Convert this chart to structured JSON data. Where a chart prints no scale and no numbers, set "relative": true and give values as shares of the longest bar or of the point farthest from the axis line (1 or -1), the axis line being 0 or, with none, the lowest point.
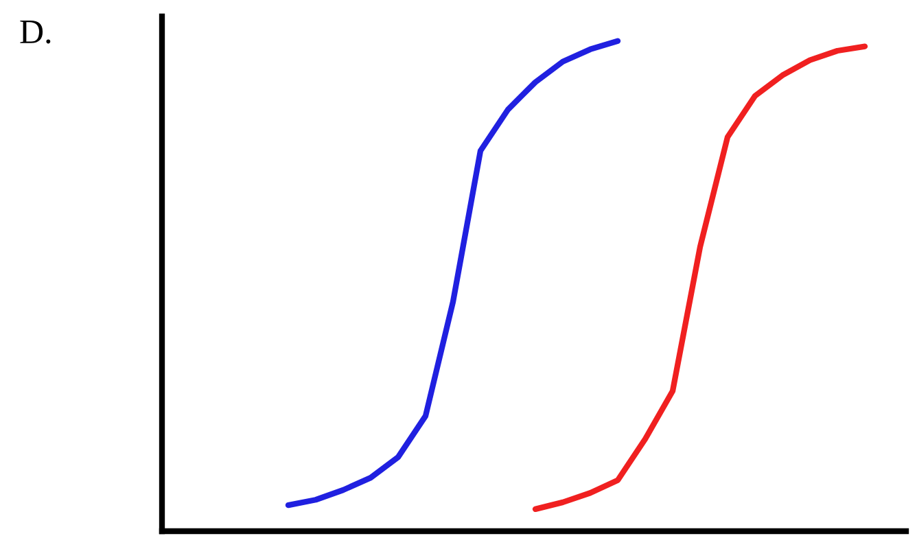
{
  "chart_data": {
    "type": "line",
    "relative": true,
    "annotations": [
      "D."
    ],
    "categories": [
      null,
      null,
      null,
      null,
      null,
      null,
      null,
      null,
      null,
      null,
      null,
      null,
      null,
      null,
      null,
      null,
      null,
      null,
      null,
      null,
      null,
      null,
      null,
      null,
      null,
      null,
      null
    ],
    "series": [
      {
        "color": "#2020e0",
        "values": [
          null,
          null,
          null,
          null,
          0.053,
          0.064,
          0.084,
          0.109,
          0.151,
          0.235,
          0.468,
          0.776,
          0.86,
          0.916,
          0.958,
          0.983,
          1,
          null,
          null,
          null,
          null,
          null,
          null,
          null,
          null,
          null,
          null
        ]
      },
      {
        "color": "#f02020",
        "values": [
          null,
          null,
          null,
          null,
          null,
          null,
          null,
          null,
          null,
          null,
          null,
          null,
          null,
          0.045,
          0.059,
          0.078,
          0.104,
          0.188,
          0.286,
          0.58,
          0.804,
          0.888,
          0.93,
          0.961,
          0.98,
          0.989,
          null
        ]
      }
    ],
    "grid": false,
    "legend": false,
    "marker": "none",
    "line_style": "solid"
  }
}
